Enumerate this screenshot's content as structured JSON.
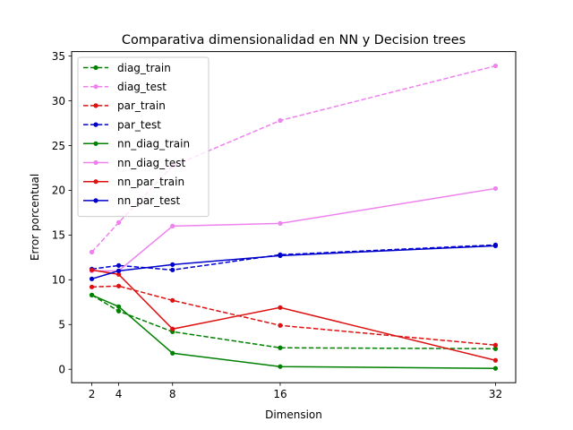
{
  "chart_data": {
    "type": "line",
    "title": "Comparativa dimensionalidad en NN y Decision trees",
    "xlabel": "Dimension",
    "ylabel": "Error porcentual",
    "x": [
      2,
      4,
      8,
      16,
      32
    ],
    "xticks": [
      2,
      4,
      8,
      16,
      32
    ],
    "yticks": [
      0,
      5,
      10,
      15,
      20,
      25,
      30,
      35
    ],
    "xlim": [
      0.5,
      33.5
    ],
    "ylim": [
      -1.5,
      35.5
    ],
    "grid": false,
    "legend_position": "top-left",
    "series": [
      {
        "name": "diag_train",
        "color": "#008000",
        "style": "dashed",
        "values": [
          8.3,
          6.5,
          4.2,
          2.4,
          2.3
        ]
      },
      {
        "name": "diag_test",
        "color": "#ee82ee",
        "style": "dashed",
        "values": [
          13.1,
          16.4,
          22.7,
          27.8,
          33.9
        ]
      },
      {
        "name": "par_train",
        "color": "#dd1111",
        "style": "dashed",
        "values": [
          9.2,
          9.3,
          7.7,
          4.9,
          2.7
        ]
      },
      {
        "name": "par_test",
        "color": "#0000cc",
        "style": "dashed",
        "values": [
          11.2,
          11.6,
          11.1,
          12.8,
          13.9
        ]
      },
      {
        "name": "nn_diag_train",
        "color": "#008000",
        "style": "solid",
        "values": [
          8.3,
          7.0,
          1.8,
          0.3,
          0.1
        ]
      },
      {
        "name": "nn_diag_test",
        "color": "#ee82ee",
        "style": "solid",
        "values": [
          11.0,
          11.0,
          16.0,
          16.3,
          20.2
        ]
      },
      {
        "name": "nn_par_train",
        "color": "#dd1111",
        "style": "solid",
        "values": [
          11.1,
          10.6,
          4.5,
          6.9,
          1.0
        ]
      },
      {
        "name": "nn_par_test",
        "color": "#0000cc",
        "style": "solid",
        "values": [
          10.1,
          11.0,
          11.7,
          12.7,
          13.8
        ]
      }
    ]
  }
}
